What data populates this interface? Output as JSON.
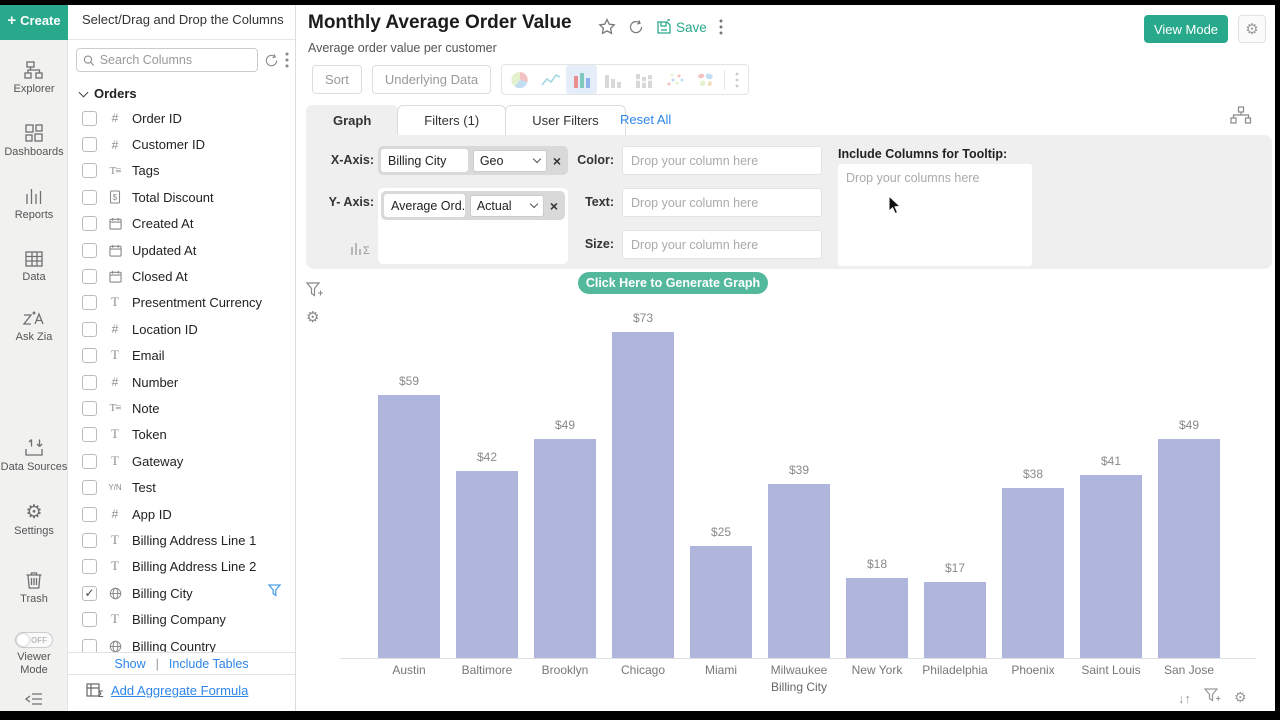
{
  "app": {
    "create_label": "Create",
    "rail": {
      "explorer": "Explorer",
      "dashboards": "Dashboards",
      "reports": "Reports",
      "data": "Data",
      "ask_zia": "Ask Zia",
      "data_sources": "Data Sources",
      "settings": "Settings",
      "trash": "Trash",
      "viewer_mode": "Viewer Mode",
      "viewer_toggle_state": "OFF"
    }
  },
  "columns_panel": {
    "header": "Select/Drag and Drop the Columns",
    "search_placeholder": "Search Columns",
    "group": "Orders",
    "columns": [
      {
        "label": "Order ID",
        "icon": "hash",
        "checked": false,
        "filtered": false
      },
      {
        "label": "Customer ID",
        "icon": "hash",
        "checked": false,
        "filtered": false
      },
      {
        "label": "Tags",
        "icon": "tags",
        "checked": false,
        "filtered": false
      },
      {
        "label": "Total Discount",
        "icon": "discount",
        "checked": false,
        "filtered": false
      },
      {
        "label": "Created At",
        "icon": "date",
        "checked": false,
        "filtered": false
      },
      {
        "label": "Updated At",
        "icon": "date",
        "checked": false,
        "filtered": false
      },
      {
        "label": "Closed At",
        "icon": "date",
        "checked": false,
        "filtered": false
      },
      {
        "label": "Presentment Currency",
        "icon": "text",
        "checked": false,
        "filtered": false
      },
      {
        "label": "Location ID",
        "icon": "hash",
        "checked": false,
        "filtered": false
      },
      {
        "label": "Email",
        "icon": "text",
        "checked": false,
        "filtered": false
      },
      {
        "label": "Number",
        "icon": "hash",
        "checked": false,
        "filtered": false
      },
      {
        "label": "Note",
        "icon": "tags",
        "checked": false,
        "filtered": false
      },
      {
        "label": "Token",
        "icon": "text",
        "checked": false,
        "filtered": false
      },
      {
        "label": "Gateway",
        "icon": "text",
        "checked": false,
        "filtered": false
      },
      {
        "label": "Test",
        "icon": "boolean",
        "checked": false,
        "filtered": false
      },
      {
        "label": "App ID",
        "icon": "hash",
        "checked": false,
        "filtered": false
      },
      {
        "label": "Billing Address Line 1",
        "icon": "text",
        "checked": false,
        "filtered": false
      },
      {
        "label": "Billing Address Line 2",
        "icon": "text",
        "checked": false,
        "filtered": false
      },
      {
        "label": "Billing City",
        "icon": "geo",
        "checked": true,
        "filtered": true
      },
      {
        "label": "Billing Company",
        "icon": "text",
        "checked": false,
        "filtered": false
      },
      {
        "label": "Billing Country",
        "icon": "geo",
        "checked": false,
        "filtered": false
      }
    ],
    "footer": {
      "show": "Show",
      "divider": "|",
      "include_tables": "Include Tables",
      "add_aggregate": "Add Aggregate Formula"
    }
  },
  "header": {
    "title": "Monthly Average Order Value",
    "subtitle": "Average order value per customer",
    "save_label": "Save",
    "view_mode_label": "View Mode"
  },
  "toolbar": {
    "sort_label": "Sort",
    "underlying_data_label": "Underlying Data"
  },
  "tabs": {
    "graph": "Graph",
    "filters": "Filters  (1)",
    "user_filters": "User Filters",
    "reset_all": "Reset All"
  },
  "config": {
    "x_axis_label": "X-Axis:",
    "x_column": "Billing City",
    "x_mode": "Geo",
    "y_axis_label": "Y- Axis:",
    "y_column": "Average Ord...",
    "y_mode": "Actual",
    "color_label": "Color:",
    "text_label": "Text:",
    "size_label": "Size:",
    "drop_single_placeholder": "Drop your column here",
    "tooltip_label": "Include Columns for Tooltip:",
    "drop_multi_placeholder": "Drop your columns here",
    "generate_label": "Click Here to Generate Graph"
  },
  "chart_data": {
    "type": "bar",
    "title": "Monthly Average Order Value",
    "categories": [
      "Austin",
      "Baltimore",
      "Brooklyn",
      "Chicago",
      "Miami",
      "Milwaukee",
      "New York",
      "Philadelphia",
      "Phoenix",
      "Saint Louis",
      "San Jose"
    ],
    "values": [
      59,
      42,
      49,
      73,
      25,
      39,
      18,
      17,
      38,
      41,
      49
    ],
    "labels": [
      "$59",
      "$42",
      "$49",
      "$73",
      "$25",
      "$39",
      "$18",
      "$17",
      "$38",
      "$41",
      "$49"
    ],
    "xlabel": "Billing City",
    "ylabel": "",
    "ylim": [
      0,
      78
    ],
    "bar_color": "#b0b5de",
    "value_prefix": "$",
    "grid": false,
    "legend": "none"
  },
  "colors": {
    "accent_teal": "#29a98b",
    "generate_teal": "#54b99c",
    "link_blue": "#2e86ea",
    "filter_blue": "#4d9fe8",
    "bar_lavender": "#b0b5de",
    "panel_grey": "#efefef"
  }
}
